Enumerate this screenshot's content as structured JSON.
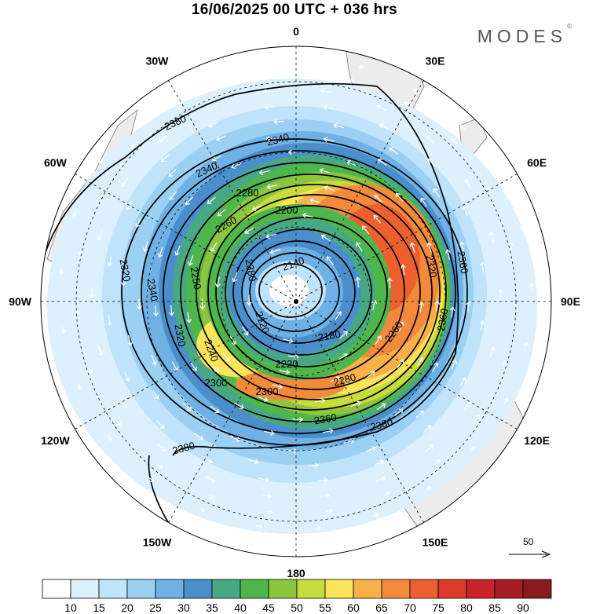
{
  "title": "16/06/2025  00 UTC  + 036 hrs",
  "brand": "MODES",
  "brand_mark": "©",
  "longitude_labels": [
    {
      "text": "0",
      "lon": 0
    },
    {
      "text": "30E",
      "lon": 30
    },
    {
      "text": "60E",
      "lon": 60
    },
    {
      "text": "90E",
      "lon": 90
    },
    {
      "text": "120E",
      "lon": 120
    },
    {
      "text": "150E",
      "lon": 150
    },
    {
      "text": "180",
      "lon": 180
    },
    {
      "text": "150W",
      "lon": 210
    },
    {
      "text": "120W",
      "lon": 240
    },
    {
      "text": "90W",
      "lon": 270
    },
    {
      "text": "60W",
      "lon": 300
    },
    {
      "text": "30W",
      "lon": 330
    }
  ],
  "contour_labels": [
    "2380",
    "2340",
    "2340",
    "2280",
    "2200",
    "2260",
    "2320",
    "2360",
    "2320",
    "2250",
    "2140",
    "2180",
    "2220",
    "2280",
    "2300",
    "2300",
    "2260",
    "2360",
    "2380",
    "2380",
    "2360",
    "2340",
    "2320",
    "2240",
    "2120",
    "2380"
  ],
  "reference_vector": {
    "value": "50"
  },
  "colorbar": {
    "labels": [
      "10",
      "15",
      "20",
      "25",
      "30",
      "35",
      "40",
      "45",
      "50",
      "55",
      "60",
      "65",
      "70",
      "75",
      "80",
      "85",
      "90"
    ],
    "colors": [
      "#ffffff",
      "#dcf0fd",
      "#bfe3fa",
      "#9bd0f3",
      "#6fb1e4",
      "#4a8fcc",
      "#49a884",
      "#4fb64c",
      "#8cc63f",
      "#c6dc3c",
      "#fbe35a",
      "#f8b14a",
      "#f28a3c",
      "#ec6030",
      "#de3a2a",
      "#c8242a",
      "#a51d24",
      "#8a1a1f"
    ]
  }
}
